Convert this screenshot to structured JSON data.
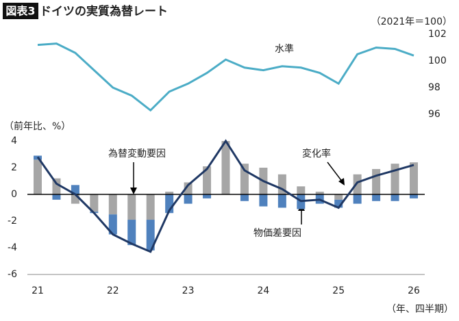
{
  "header": {
    "badge": "図表3",
    "title": "ドイツの実質為替レート"
  },
  "chart_data": [
    {
      "type": "line",
      "subtitle": "（2021年＝100）",
      "series": [
        {
          "name": "水準",
          "color": "#4bacc6",
          "values": [
            101.2,
            101.3,
            100.6,
            99.3,
            98.0,
            97.4,
            96.3,
            97.7,
            98.3,
            99.1,
            100.1,
            99.5,
            99.3,
            99.6,
            99.5,
            99.1,
            98.3,
            100.5,
            101.0,
            100.9,
            100.4
          ]
        }
      ],
      "ylim": [
        96,
        102
      ],
      "yticks": [
        96,
        98,
        100,
        102
      ]
    },
    {
      "type": "bar",
      "ylabel": "（前年比、%）",
      "xlabel": "（年、四半期）",
      "categories": [
        "21",
        null,
        null,
        null,
        "22",
        null,
        null,
        null,
        "23",
        null,
        null,
        null,
        "24",
        null,
        null,
        null,
        "25",
        null,
        null,
        null,
        "26"
      ],
      "series": [
        {
          "name": "為替変動要因",
          "type": "bar",
          "color": "#a6a6a6",
          "values": [
            2.6,
            1.2,
            -0.7,
            -1.3,
            -1.5,
            -1.9,
            -1.9,
            0.2,
            0.9,
            2.1,
            4.0,
            2.3,
            2.0,
            1.5,
            0.6,
            0.2,
            -0.4,
            1.5,
            1.9,
            2.3,
            2.4
          ]
        },
        {
          "name": "物価差要因",
          "type": "bar",
          "color": "#4f81bd",
          "values": [
            0.3,
            -0.4,
            0.7,
            -0.1,
            -1.5,
            -1.9,
            -2.3,
            -1.4,
            -0.7,
            -0.3,
            0.0,
            -0.5,
            -0.9,
            -1.0,
            -1.1,
            -0.7,
            -0.6,
            -0.7,
            -0.5,
            -0.5,
            -0.3
          ]
        },
        {
          "name": "変化率",
          "type": "line",
          "color": "#1f3864",
          "values": [
            2.8,
            0.8,
            0.0,
            -1.4,
            -3.0,
            -3.7,
            -4.3,
            -1.2,
            0.7,
            1.9,
            4.0,
            1.8,
            1.0,
            0.4,
            -0.5,
            -0.4,
            -1.0,
            0.9,
            1.4,
            1.8,
            2.2
          ]
        }
      ],
      "ylim": [
        -6,
        4
      ],
      "yticks": [
        -6,
        -4,
        -2,
        0,
        2,
        4
      ]
    }
  ]
}
